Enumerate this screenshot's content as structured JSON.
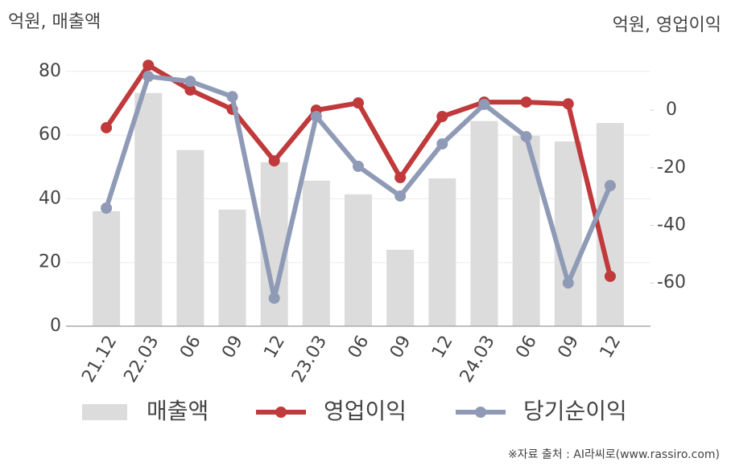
{
  "chart_data": {
    "type": "combo",
    "y_label": "억원, 매출액",
    "y2_label": "억원, 영업이익",
    "source": "※자료 출처 : AI라씨로(www.rassiro.com)",
    "categories": [
      "21.12",
      "22.03",
      "06",
      "09",
      "12",
      "23.03",
      "06",
      "09",
      "12",
      "24.03",
      "06",
      "09",
      "12"
    ],
    "series": [
      {
        "name": "매출액",
        "type": "bar",
        "color": "#dcdcdc",
        "values": [
          36.1,
          73.2,
          55.3,
          36.6,
          51.5,
          45.7,
          41.4,
          24.0,
          46.4,
          64.4,
          59.8,
          58.0,
          63.8
        ]
      },
      {
        "name": "영업이익",
        "type": "line",
        "axis": "y2",
        "color": "#c0393b",
        "values": [
          -6.1,
          15.6,
          7.0,
          0.3,
          -17.6,
          0.0,
          2.5,
          -23.4,
          -2.2,
          2.8,
          2.8,
          2.2,
          -57.7
        ]
      },
      {
        "name": "당기순이익",
        "type": "line",
        "axis": "y2",
        "color": "#8f9bb6",
        "values": [
          -34.0,
          11.7,
          10.0,
          4.7,
          -65.3,
          -2.2,
          -19.5,
          -29.8,
          -11.7,
          2.0,
          -9.2,
          -60.0,
          -26.2
        ]
      }
    ],
    "ylim": [
      0,
      85
    ],
    "yticks": [
      0,
      20,
      40,
      60,
      80
    ],
    "y2lim": [
      -75,
      19
    ],
    "y2ticks": [
      -60,
      -40,
      -20,
      0
    ],
    "grid": true
  }
}
